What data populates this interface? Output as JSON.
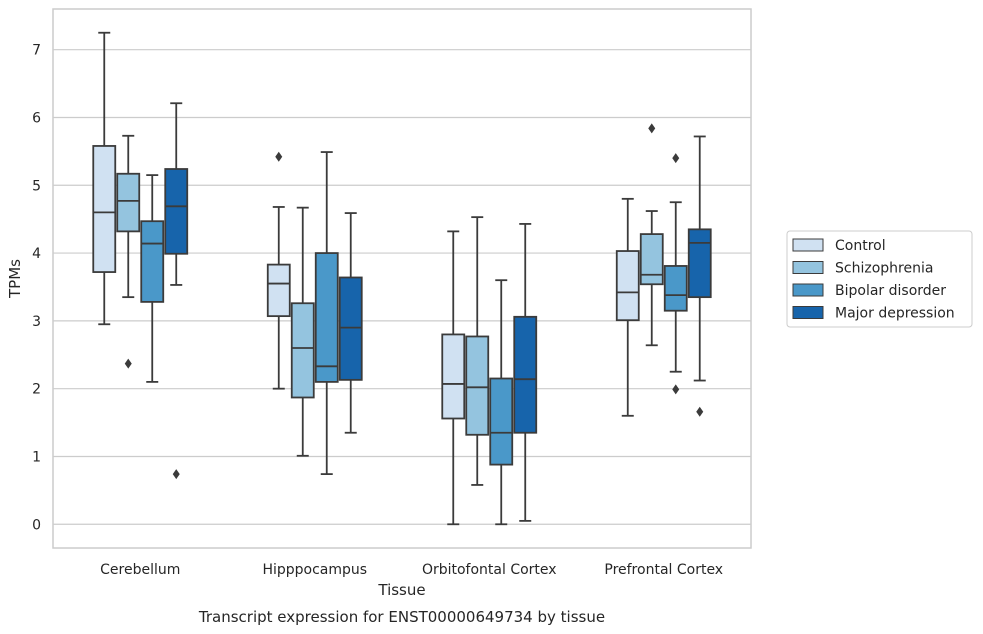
{
  "caption": "Transcript expression for ENST00000649734 by tissue",
  "chart_data": {
    "type": "boxplot",
    "xlabel": "Tissue",
    "ylabel": "TPMs",
    "ylim": [
      -0.35,
      7.6
    ],
    "yticks": [
      0,
      1,
      2,
      3,
      4,
      5,
      6,
      7
    ],
    "grid": "horizontal",
    "legend_position": "right",
    "categories": [
      "Cerebellum",
      "Hipppocampus",
      "Orbitofontal Cortex",
      "Prefrontal Cortex"
    ],
    "series": [
      {
        "name": "Control",
        "color": "#d0e1f2",
        "boxes": [
          {
            "whisker_low": 2.95,
            "q1": 3.72,
            "median": 4.6,
            "q3": 5.58,
            "whisker_high": 7.25,
            "outliers": []
          },
          {
            "whisker_low": 2.0,
            "q1": 3.07,
            "median": 3.55,
            "q3": 3.83,
            "whisker_high": 4.68,
            "outliers": [
              5.42
            ]
          },
          {
            "whisker_low": 0.0,
            "q1": 1.56,
            "median": 2.07,
            "q3": 2.8,
            "whisker_high": 4.32,
            "outliers": []
          },
          {
            "whisker_low": 1.6,
            "q1": 3.01,
            "median": 3.42,
            "q3": 4.03,
            "whisker_high": 4.8,
            "outliers": []
          }
        ]
      },
      {
        "name": "Schizophrenia",
        "color": "#94c4df",
        "boxes": [
          {
            "whisker_low": 3.35,
            "q1": 4.32,
            "median": 4.77,
            "q3": 5.17,
            "whisker_high": 5.73,
            "outliers": [
              2.37
            ]
          },
          {
            "whisker_low": 1.01,
            "q1": 1.87,
            "median": 2.6,
            "q3": 3.26,
            "whisker_high": 4.67,
            "outliers": []
          },
          {
            "whisker_low": 0.58,
            "q1": 1.32,
            "median": 2.02,
            "q3": 2.77,
            "whisker_high": 4.53,
            "outliers": []
          },
          {
            "whisker_low": 2.64,
            "q1": 3.54,
            "median": 3.68,
            "q3": 4.28,
            "whisker_high": 4.62,
            "outliers": [
              5.84
            ]
          }
        ]
      },
      {
        "name": "Bipolar disorder",
        "color": "#4a98c9",
        "boxes": [
          {
            "whisker_low": 2.1,
            "q1": 3.28,
            "median": 4.14,
            "q3": 4.47,
            "whisker_high": 5.15,
            "outliers": []
          },
          {
            "whisker_low": 0.74,
            "q1": 2.1,
            "median": 2.33,
            "q3": 4.0,
            "whisker_high": 5.49,
            "outliers": []
          },
          {
            "whisker_low": 0.0,
            "q1": 0.88,
            "median": 1.35,
            "q3": 2.15,
            "whisker_high": 3.6,
            "outliers": []
          },
          {
            "whisker_low": 2.25,
            "q1": 3.15,
            "median": 3.38,
            "q3": 3.81,
            "whisker_high": 4.75,
            "outliers": [
              5.4,
              1.99
            ]
          }
        ]
      },
      {
        "name": "Major depression",
        "color": "#1764ab",
        "boxes": [
          {
            "whisker_low": 3.53,
            "q1": 3.99,
            "median": 4.69,
            "q3": 5.24,
            "whisker_high": 6.21,
            "outliers": [
              0.74
            ]
          },
          {
            "whisker_low": 1.35,
            "q1": 2.13,
            "median": 2.9,
            "q3": 3.64,
            "whisker_high": 4.59,
            "outliers": []
          },
          {
            "whisker_low": 0.05,
            "q1": 1.35,
            "median": 2.14,
            "q3": 3.06,
            "whisker_high": 4.43,
            "outliers": []
          },
          {
            "whisker_low": 2.12,
            "q1": 3.35,
            "median": 4.15,
            "q3": 4.35,
            "whisker_high": 5.72,
            "outliers": [
              1.66
            ]
          }
        ]
      }
    ]
  }
}
